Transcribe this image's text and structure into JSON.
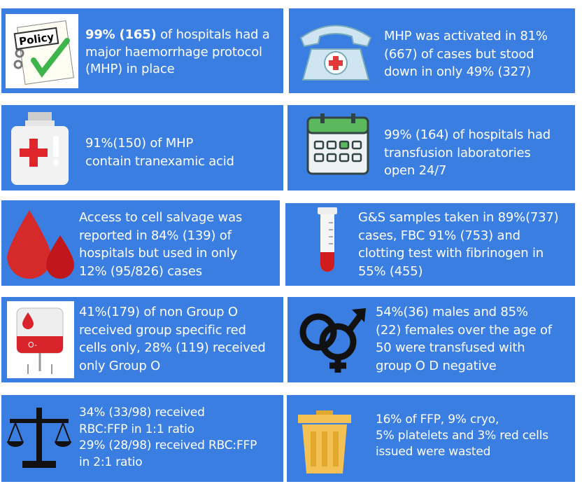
{
  "tiles": [
    {
      "bold": "99% (165)",
      "icon_text": "Policy",
      "lines": [
        " of hospitals had a",
        "major haemorrhage protocol",
        "(MHP) in place"
      ]
    },
    {
      "lines": [
        "MHP was activated in 81%",
        "(667) of cases but stood",
        "down in only 49% (327)"
      ]
    },
    {
      "lines": [
        "91%(150) of MHP",
        "contain tranexamic acid"
      ]
    },
    {
      "lines": [
        "99% (164) of hospitals had",
        "transfusion laboratories",
        "open 24/7"
      ]
    },
    {
      "lines": [
        "Access to cell salvage was",
        "reported in 84% (139) of",
        "hospitals but used in only",
        "12% (95/826) cases"
      ]
    },
    {
      "lines": [
        "G&S samples taken in 89%(737)",
        "cases, FBC 91% (753) and",
        "clotting test with fibrinogen in",
        "55% (455)"
      ]
    },
    {
      "icon_text": "O-",
      "lines": [
        "41%(179) of non Group O",
        "received group specific red",
        "cells only, 28% (119) received",
        "only Group O"
      ]
    },
    {
      "lines": [
        "54%(36) males and 85%",
        "(22) females over the age of",
        "50 were transfused with",
        "group O D negative"
      ]
    },
    {
      "lines": [
        "34% (33/98) received",
        "RBC:FFP in 1:1 ratio",
        "29% (28/98) received RBC:FFP",
        "in 2:1 ratio"
      ]
    },
    {
      "lines": [
        "16% of FFP, 9% cryo,",
        "5% platelets and 3% red cells",
        "issued were wasted"
      ]
    }
  ]
}
